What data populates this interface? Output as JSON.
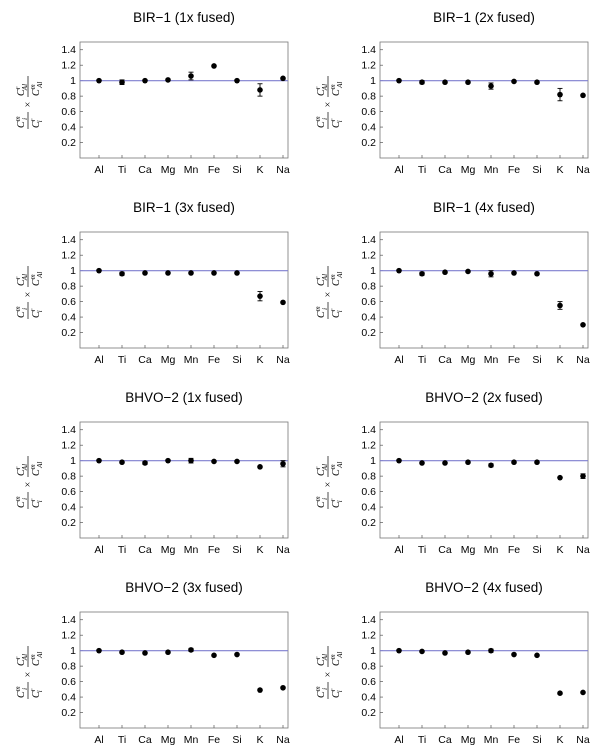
{
  "figure": {
    "y_axis_label": {
      "num_left": "C",
      "num_left_sup": "m",
      "num_left_sub": "i",
      "den_left": "C",
      "den_left_sup": "r",
      "den_left_sub": "i",
      "times": "×",
      "num_right": "C",
      "num_right_sup": "r",
      "num_right_sub": "Al",
      "den_right": "C",
      "den_right_sup": "m",
      "den_right_sub": "Al"
    },
    "colors": {
      "reference_line": "#7f7fcf",
      "points": "#000000",
      "frame": "#777777"
    }
  },
  "chart_data": [
    {
      "type": "scatter",
      "title": "BIR−1 (1x fused)",
      "categories": [
        "Al",
        "Ti",
        "Ca",
        "Mg",
        "Mn",
        "Fe",
        "Si",
        "K",
        "Na"
      ],
      "values": [
        1.0,
        0.98,
        1.0,
        1.01,
        1.06,
        1.19,
        1.0,
        0.88,
        1.03
      ],
      "errors": [
        0.0,
        0.03,
        0.0,
        0.01,
        0.05,
        0.0,
        0.0,
        0.08,
        0.01
      ],
      "yticks": [
        "0.2",
        "0.4",
        "0.6",
        "0.8",
        "1",
        "1.2",
        "1.4"
      ],
      "ylim": [
        0.0,
        1.5
      ],
      "reference_y": 1.0,
      "grid": false
    },
    {
      "type": "scatter",
      "title": "BIR−1 (2x fused)",
      "categories": [
        "Al",
        "Ti",
        "Ca",
        "Mg",
        "Mn",
        "Fe",
        "Si",
        "K",
        "Na"
      ],
      "values": [
        1.0,
        0.98,
        0.98,
        0.98,
        0.93,
        0.99,
        0.98,
        0.82,
        0.81
      ],
      "errors": [
        0.0,
        0.02,
        0.0,
        0.01,
        0.04,
        0.0,
        0.0,
        0.08,
        0.01
      ],
      "yticks": [
        "0.2",
        "0.4",
        "0.6",
        "0.8",
        "1",
        "1.2",
        "1.4"
      ],
      "ylim": [
        0.0,
        1.5
      ],
      "reference_y": 1.0,
      "grid": false
    },
    {
      "type": "scatter",
      "title": "BIR−1 (3x fused)",
      "categories": [
        "Al",
        "Ti",
        "Ca",
        "Mg",
        "Mn",
        "Fe",
        "Si",
        "K",
        "Na"
      ],
      "values": [
        1.0,
        0.96,
        0.97,
        0.97,
        0.97,
        0.97,
        0.97,
        0.67,
        0.59
      ],
      "errors": [
        0.0,
        0.02,
        0.0,
        0.0,
        0.01,
        0.0,
        0.0,
        0.06,
        0.0
      ],
      "yticks": [
        "0.2",
        "0.4",
        "0.6",
        "0.8",
        "1",
        "1.2",
        "1.4"
      ],
      "ylim": [
        0.0,
        1.5
      ],
      "reference_y": 1.0,
      "grid": false
    },
    {
      "type": "scatter",
      "title": "BIR−1 (4x fused)",
      "categories": [
        "Al",
        "Ti",
        "Ca",
        "Mg",
        "Mn",
        "Fe",
        "Si",
        "K",
        "Na"
      ],
      "values": [
        1.0,
        0.96,
        0.98,
        0.99,
        0.96,
        0.97,
        0.96,
        0.55,
        0.3
      ],
      "errors": [
        0.0,
        0.02,
        0.01,
        0.01,
        0.04,
        0.0,
        0.0,
        0.05,
        0.0
      ],
      "yticks": [
        "0.2",
        "0.4",
        "0.6",
        "0.8",
        "1",
        "1.2",
        "1.4"
      ],
      "ylim": [
        0.0,
        1.5
      ],
      "reference_y": 1.0,
      "grid": false
    },
    {
      "type": "scatter",
      "title": "BHVO−2 (1x fused)",
      "categories": [
        "Al",
        "Ti",
        "Ca",
        "Mg",
        "Mn",
        "Fe",
        "Si",
        "K",
        "Na"
      ],
      "values": [
        1.0,
        0.98,
        0.97,
        1.0,
        1.0,
        0.99,
        0.99,
        0.92,
        0.96
      ],
      "errors": [
        0.0,
        0.0,
        0.02,
        0.01,
        0.03,
        0.0,
        0.0,
        0.0,
        0.04
      ],
      "yticks": [
        "0.2",
        "0.4",
        "0.6",
        "0.8",
        "1",
        "1.2",
        "1.4"
      ],
      "ylim": [
        0.0,
        1.5
      ],
      "reference_y": 1.0,
      "grid": false
    },
    {
      "type": "scatter",
      "title": "BHVO−2 (2x fused)",
      "categories": [
        "Al",
        "Ti",
        "Ca",
        "Mg",
        "Mn",
        "Fe",
        "Si",
        "K",
        "Na"
      ],
      "values": [
        1.0,
        0.97,
        0.97,
        0.98,
        0.94,
        0.98,
        0.98,
        0.78,
        0.8
      ],
      "errors": [
        0.0,
        0.0,
        0.0,
        0.0,
        0.02,
        0.0,
        0.0,
        0.0,
        0.03
      ],
      "yticks": [
        "0.2",
        "0.4",
        "0.6",
        "0.8",
        "1",
        "1.2",
        "1.4"
      ],
      "ylim": [
        0.0,
        1.5
      ],
      "reference_y": 1.0,
      "grid": false
    },
    {
      "type": "scatter",
      "title": "BHVO−2 (3x fused)",
      "categories": [
        "Al",
        "Ti",
        "Ca",
        "Mg",
        "Mn",
        "Fe",
        "Si",
        "K",
        "Na"
      ],
      "values": [
        1.0,
        0.98,
        0.97,
        0.98,
        1.01,
        0.94,
        0.95,
        0.49,
        0.52
      ],
      "errors": [
        0.0,
        0.0,
        0.0,
        0.0,
        0.02,
        0.0,
        0.0,
        0.0,
        0.0
      ],
      "yticks": [
        "0.2",
        "0.4",
        "0.6",
        "0.8",
        "1",
        "1.2",
        "1.4"
      ],
      "ylim": [
        0.0,
        1.5
      ],
      "reference_y": 1.0,
      "grid": false
    },
    {
      "type": "scatter",
      "title": "BHVO−2 (4x fused)",
      "categories": [
        "Al",
        "Ti",
        "Ca",
        "Mg",
        "Mn",
        "Fe",
        "Si",
        "K",
        "Na"
      ],
      "values": [
        1.0,
        0.99,
        0.97,
        0.98,
        1.0,
        0.95,
        0.94,
        0.45,
        0.46
      ],
      "errors": [
        0.0,
        0.0,
        0.0,
        0.0,
        0.02,
        0.0,
        0.0,
        0.0,
        0.0
      ],
      "yticks": [
        "0.2",
        "0.4",
        "0.6",
        "0.8",
        "1",
        "1.2",
        "1.4"
      ],
      "ylim": [
        0.0,
        1.5
      ],
      "reference_y": 1.0,
      "grid": false
    }
  ]
}
